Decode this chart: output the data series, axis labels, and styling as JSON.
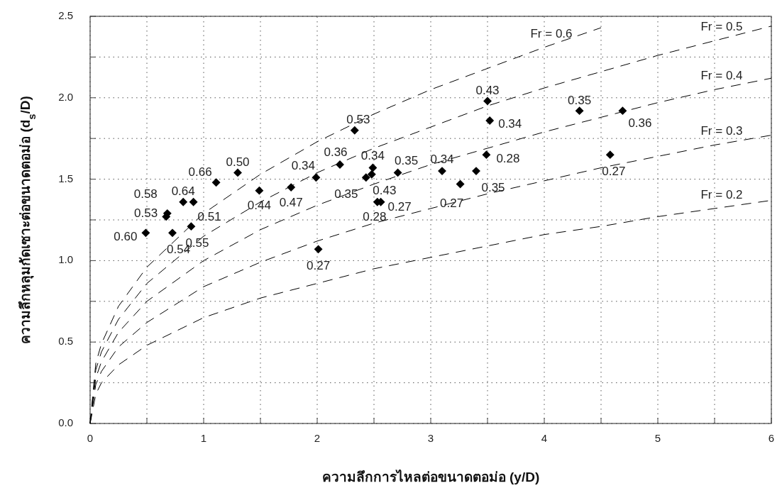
{
  "chart_data": {
    "type": "scatter",
    "xlabel": "ความลึกการไหลต่อขนาดตอม่อ (y/D)",
    "ylabel": "ความลึกหลุมกัดเซาะต่อขนาดตอม่อ (d$_{s}$/D)",
    "xlim": [
      0,
      6
    ],
    "ylim": [
      0,
      2.5
    ],
    "xticks": [
      0,
      {
        "value": 0.5,
        "label": null
      },
      1,
      {
        "value": 1.5,
        "label": null
      },
      2,
      {
        "value": 2.5,
        "label": null
      },
      3,
      {
        "value": 3.5,
        "label": null
      },
      4,
      {
        "value": 4.5,
        "label": null
      },
      5,
      {
        "value": 5.5,
        "label": null
      },
      6
    ],
    "yticks": [
      {
        "value": 0,
        "label": "0.0"
      },
      {
        "value": 0.25,
        "label": null
      },
      0.5,
      {
        "value": 0.75,
        "label": null
      },
      {
        "value": 1,
        "label": "1.0"
      },
      {
        "value": 1.25,
        "label": null
      },
      1.5,
      {
        "value": 1.75,
        "label": null
      },
      {
        "value": 2,
        "label": "2.0"
      },
      {
        "value": 2.25,
        "label": null
      },
      2.5
    ],
    "grid": true,
    "marker": "diamond",
    "annotations": [
      {
        "text": "0.60",
        "x": 0.49,
        "y": 1.17
      },
      {
        "text": "0.53",
        "x": 0.67,
        "y": 1.27
      },
      {
        "text": "0.58",
        "x": 0.68,
        "y": 1.29
      },
      {
        "text": "0.54",
        "x": 0.725,
        "y": 1.17
      },
      {
        "text": "0.55",
        "x": 0.89,
        "y": 1.21
      },
      {
        "text": "0.64",
        "x": 0.82,
        "y": 1.36
      },
      {
        "text": "0.51",
        "x": 0.91,
        "y": 1.36
      },
      {
        "text": "0.66",
        "x": 1.11,
        "y": 1.48
      },
      {
        "text": "0.50",
        "x": 1.3,
        "y": 1.54
      },
      {
        "text": "0.44",
        "x": 1.49,
        "y": 1.43
      },
      {
        "text": "0.47",
        "x": 1.77,
        "y": 1.45
      },
      {
        "text": "0.34",
        "x": 1.99,
        "y": 1.51
      },
      {
        "text": "0.27",
        "x": 2.01,
        "y": 1.07
      },
      {
        "text": "0.36",
        "x": 2.2,
        "y": 1.59
      },
      {
        "text": "0.53",
        "x": 2.33,
        "y": 1.8
      },
      {
        "text": "0.35",
        "x": 2.43,
        "y": 1.51
      },
      {
        "text": "0.43",
        "x": 2.48,
        "y": 1.53
      },
      {
        "text": "0.34",
        "x": 2.49,
        "y": 1.57
      },
      {
        "text": "0.28",
        "x": 2.53,
        "y": 1.36
      },
      {
        "text": "0.27",
        "x": 2.56,
        "y": 1.36
      },
      {
        "text": "0.35",
        "x": 2.71,
        "y": 1.54
      },
      {
        "text": "0.34",
        "x": 3.1,
        "y": 1.55
      },
      {
        "text": "0.27",
        "x": 3.26,
        "y": 1.47
      },
      {
        "text": "0.35",
        "x": 3.4,
        "y": 1.55
      },
      {
        "text": "0.28",
        "x": 3.49,
        "y": 1.65
      },
      {
        "text": "0.43",
        "x": 3.5,
        "y": 1.98
      },
      {
        "text": "0.34",
        "x": 3.52,
        "y": 1.86
      },
      {
        "text": "0.35",
        "x": 4.31,
        "y": 1.92
      },
      {
        "text": "0.27",
        "x": 4.58,
        "y": 1.65
      },
      {
        "text": "0.36",
        "x": 4.69,
        "y": 1.92
      }
    ],
    "series": [
      {
        "color": "#000000",
        "x": [
          0.49,
          0.67,
          0.68,
          0.725,
          0.89,
          0.82,
          0.91,
          1.11,
          1.3,
          1.49,
          1.77,
          1.99,
          2.01,
          2.2,
          2.33,
          2.43,
          2.48,
          2.49,
          2.53,
          2.56,
          2.71,
          3.1,
          3.26,
          3.4,
          3.49,
          3.5,
          3.52,
          4.31,
          4.58,
          4.69
        ],
        "values": [
          1.17,
          1.27,
          1.29,
          1.17,
          1.21,
          1.36,
          1.36,
          1.48,
          1.54,
          1.43,
          1.45,
          1.51,
          1.07,
          1.59,
          1.8,
          1.51,
          1.53,
          1.57,
          1.36,
          1.36,
          1.54,
          1.55,
          1.47,
          1.55,
          1.65,
          1.98,
          1.86,
          1.92,
          1.65,
          1.92
        ]
      },
      {
        "type": "line",
        "name": "Fr = 0.6",
        "color": "#000000",
        "line_style": "dashed",
        "marker": "none",
        "x": [
          0,
          0.05,
          0.1,
          0.25,
          0.5,
          1,
          1.5,
          2,
          2.5,
          3,
          3.5,
          4,
          4.5
        ],
        "values": [
          0,
          0.37,
          0.49,
          0.72,
          0.96,
          1.29,
          1.53,
          1.73,
          1.9,
          2.05,
          2.18,
          2.31,
          2.43
        ]
      },
      {
        "type": "line",
        "name": "Fr = 0.5",
        "color": "#000000",
        "line_style": "dashed",
        "marker": "none",
        "x": [
          0,
          0.05,
          0.1,
          0.25,
          0.5,
          1,
          1.5,
          2,
          2.5,
          3,
          3.5,
          4,
          4.5,
          5,
          5.5,
          6
        ],
        "values": [
          0,
          0.33,
          0.44,
          0.64,
          0.86,
          1.15,
          1.36,
          1.54,
          1.69,
          1.82,
          1.95,
          2.06,
          2.16,
          2.26,
          2.35,
          2.44
        ]
      },
      {
        "type": "line",
        "name": "Fr = 0.4",
        "color": "#000000",
        "line_style": "dashed",
        "marker": "none",
        "x": [
          0,
          0.05,
          0.1,
          0.25,
          0.5,
          1,
          1.5,
          2,
          2.5,
          3,
          3.5,
          4,
          4.5,
          5,
          5.5,
          6
        ],
        "values": [
          0,
          0.28,
          0.38,
          0.56,
          0.75,
          1.0,
          1.19,
          1.34,
          1.47,
          1.59,
          1.69,
          1.79,
          1.88,
          1.97,
          2.05,
          2.12
        ]
      },
      {
        "type": "line",
        "name": "Fr = 0.3",
        "color": "#000000",
        "line_style": "dashed",
        "marker": "none",
        "x": [
          0,
          0.05,
          0.1,
          0.25,
          0.5,
          1,
          1.5,
          2,
          2.5,
          3,
          3.5,
          4,
          4.5,
          5,
          5.5,
          6
        ],
        "values": [
          0,
          0.24,
          0.32,
          0.47,
          0.62,
          0.84,
          0.99,
          1.12,
          1.23,
          1.32,
          1.41,
          1.49,
          1.57,
          1.64,
          1.71,
          1.77
        ]
      },
      {
        "type": "line",
        "name": "Fr = 0.2",
        "color": "#000000",
        "line_style": "dashed",
        "marker": "none",
        "x": [
          0,
          0.05,
          0.1,
          0.25,
          0.5,
          1,
          1.5,
          2,
          2.5,
          3,
          3.5,
          4,
          4.5,
          5,
          5.5,
          6
        ],
        "values": [
          0,
          0.18,
          0.25,
          0.36,
          0.48,
          0.65,
          0.77,
          0.86,
          0.95,
          1.02,
          1.09,
          1.16,
          1.21,
          1.27,
          1.32,
          1.37
        ]
      }
    ]
  }
}
